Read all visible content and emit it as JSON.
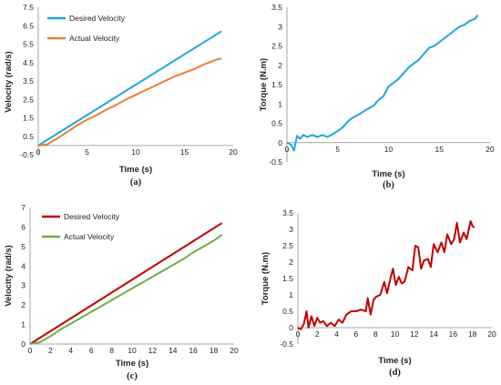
{
  "chart_data": [
    {
      "type": "line",
      "caption": "(a)",
      "xlabel": "Time (s)",
      "ylabel": "Velocity (rad/s)",
      "xlim": [
        0,
        20
      ],
      "ylim": [
        -0.5,
        7.5
      ],
      "xticks": [
        "0",
        "5",
        "10",
        "15",
        "20"
      ],
      "yticks": [
        "-0.5",
        "0.5",
        "1.5",
        "2.5",
        "3.5",
        "4.5",
        "5.5",
        "6.5",
        "7.5"
      ],
      "grid": false,
      "legend": "top-left",
      "series": [
        {
          "name": "Desired Velocity",
          "color": "#1fa6dd",
          "x": [
            0,
            18.8
          ],
          "y": [
            0,
            6.2
          ]
        },
        {
          "name": "Actual Velocity",
          "color": "#ed7d31",
          "x": [
            0,
            0.5,
            1,
            1.5,
            2,
            3,
            4,
            5,
            6,
            7,
            8,
            9,
            10,
            11,
            12,
            13,
            14,
            15,
            16,
            17,
            18,
            18.5,
            18.8
          ],
          "y": [
            0,
            0.03,
            0.08,
            0.25,
            0.4,
            0.75,
            1.1,
            1.4,
            1.65,
            1.95,
            2.2,
            2.5,
            2.75,
            3.0,
            3.25,
            3.5,
            3.75,
            3.95,
            4.15,
            4.4,
            4.6,
            4.7,
            4.7
          ]
        }
      ]
    },
    {
      "type": "line",
      "caption": "(b)",
      "xlabel": "Time (s)",
      "ylabel": "Torque (N.m)",
      "xlim": [
        0,
        20
      ],
      "ylim": [
        -0.5,
        3.5
      ],
      "xticks": [
        "0",
        "5",
        "10",
        "15",
        "20"
      ],
      "yticks": [
        "-0.5",
        "0",
        "0.5",
        "1",
        "1.5",
        "2",
        "2.5",
        "3",
        "3.5"
      ],
      "grid": false,
      "series": [
        {
          "name": "",
          "color": "#1fa6dd",
          "x": [
            0,
            0.4,
            0.7,
            1,
            1.3,
            1.6,
            2,
            2.5,
            3,
            3.5,
            4,
            4.5,
            5,
            5.5,
            6,
            6.5,
            7,
            7.5,
            8,
            8.5,
            9,
            9.5,
            10,
            10.5,
            11,
            11.5,
            12,
            12.5,
            13,
            13.5,
            14,
            14.5,
            15,
            15.5,
            16,
            16.5,
            17,
            17.5,
            18,
            18.5,
            18.8
          ],
          "y": [
            0,
            -0.05,
            -0.2,
            0.18,
            0.1,
            0.2,
            0.15,
            0.2,
            0.15,
            0.2,
            0.15,
            0.22,
            0.3,
            0.4,
            0.55,
            0.65,
            0.72,
            0.8,
            0.88,
            0.95,
            1.1,
            1.2,
            1.45,
            1.55,
            1.65,
            1.8,
            1.95,
            2.05,
            2.15,
            2.3,
            2.45,
            2.5,
            2.6,
            2.7,
            2.8,
            2.9,
            3.0,
            3.05,
            3.15,
            3.2,
            3.3
          ]
        }
      ]
    },
    {
      "type": "line",
      "caption": "(c)",
      "xlabel": "Time (s)",
      "ylabel": "Velocity (rad/s)",
      "xlim": [
        0,
        20
      ],
      "ylim": [
        0,
        7
      ],
      "xticks": [
        "0",
        "2",
        "4",
        "6",
        "8",
        "10",
        "12",
        "14",
        "16",
        "18",
        "20"
      ],
      "yticks": [
        "0",
        "1",
        "2",
        "3",
        "4",
        "5",
        "6",
        "7"
      ],
      "grid": false,
      "legend": "top-left",
      "series": [
        {
          "name": "Desired Velocity",
          "color": "#c00000",
          "x": [
            0,
            18.8
          ],
          "y": [
            0,
            6.2
          ]
        },
        {
          "name": "Actual Velocity",
          "color": "#70ad47",
          "x": [
            0,
            0.5,
            1,
            2,
            3,
            4,
            5,
            6,
            7,
            8,
            9,
            10,
            11,
            12,
            13,
            14,
            15,
            16,
            17,
            18,
            18.8
          ],
          "y": [
            0,
            0.05,
            0.1,
            0.4,
            0.75,
            1.05,
            1.35,
            1.65,
            1.95,
            2.25,
            2.55,
            2.85,
            3.15,
            3.45,
            3.75,
            4.05,
            4.35,
            4.7,
            5.0,
            5.3,
            5.6
          ]
        }
      ]
    },
    {
      "type": "line",
      "caption": "(d)",
      "xlabel": "Time (s)",
      "ylabel": "Torque (N.m)",
      "xlim": [
        0,
        20
      ],
      "ylim": [
        -0.5,
        3.5
      ],
      "xticks": [
        "0",
        "2",
        "4",
        "6",
        "8",
        "10",
        "12",
        "14",
        "16",
        "18",
        "20"
      ],
      "yticks": [
        "-0.5",
        "0",
        "0.5",
        "1",
        "1.5",
        "2",
        "2.5",
        "3",
        "3.5"
      ],
      "grid": false,
      "series": [
        {
          "name": "",
          "color": "#c00000",
          "x": [
            0,
            0.3,
            0.6,
            0.9,
            1.1,
            1.4,
            1.7,
            2,
            2.3,
            2.6,
            3,
            3.4,
            3.8,
            4.2,
            4.6,
            5,
            5.5,
            6,
            6.5,
            7,
            7.2,
            7.5,
            7.8,
            8.1,
            8.5,
            8.9,
            9.2,
            9.5,
            9.8,
            10.1,
            10.4,
            10.7,
            11,
            11.4,
            11.8,
            12.1,
            12.4,
            12.7,
            13,
            13.4,
            13.7,
            14,
            14.4,
            14.8,
            15.1,
            15.4,
            15.8,
            16.1,
            16.4,
            16.7,
            17.1,
            17.4,
            17.8,
            18,
            18.2
          ],
          "y": [
            0,
            -0.05,
            0.1,
            0.5,
            0.0,
            0.35,
            0.05,
            0.3,
            0.15,
            0.2,
            0.05,
            0.15,
            0.05,
            0.25,
            0.15,
            0.4,
            0.5,
            0.5,
            0.55,
            0.5,
            0.9,
            0.4,
            0.85,
            0.95,
            1.0,
            1.4,
            1.05,
            1.45,
            1.8,
            1.3,
            1.55,
            1.35,
            1.4,
            1.85,
            1.75,
            2.5,
            2.45,
            1.8,
            2.05,
            2.1,
            1.85,
            2.55,
            2.3,
            2.6,
            2.3,
            2.85,
            2.55,
            2.7,
            3.2,
            2.6,
            2.9,
            2.7,
            3.25,
            3.1,
            3.05
          ]
        }
      ]
    }
  ]
}
